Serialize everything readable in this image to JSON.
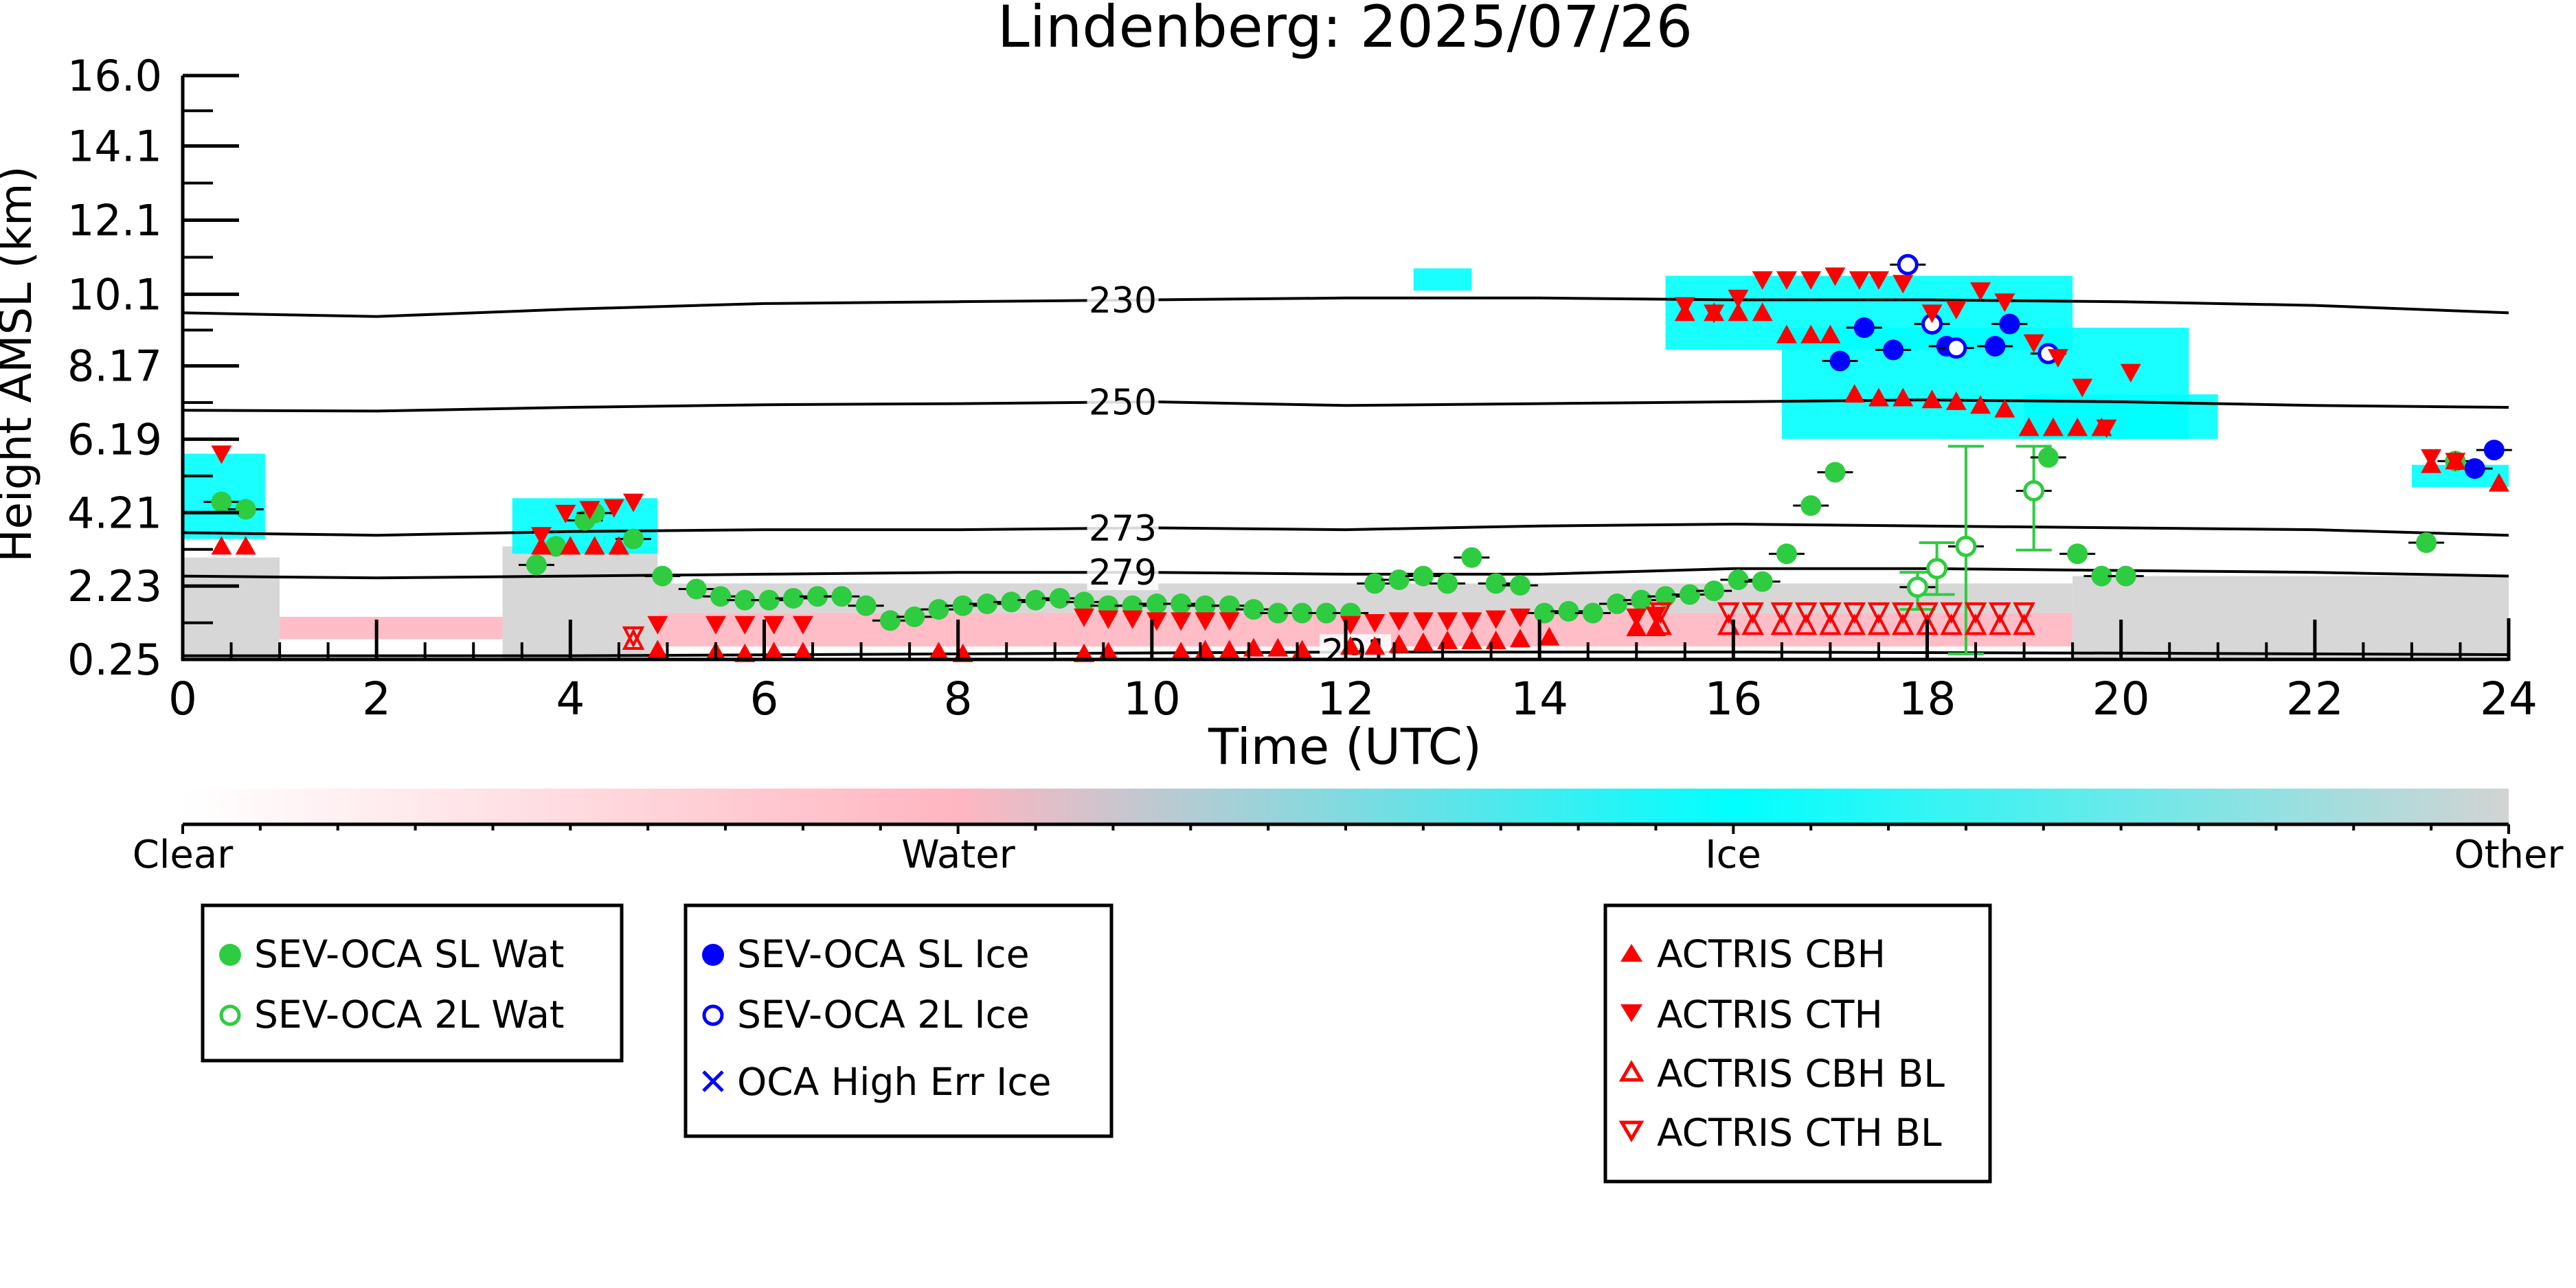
{
  "chart_data": {
    "type": "scatter",
    "title": "Lindenberg: 2025/07/26",
    "xlabel": "Time (UTC)",
    "ylabel": "Height AMSL (km)",
    "xlim": [
      0,
      24
    ],
    "ylim": [
      0.25,
      16.0
    ],
    "y_scale": "linear",
    "x_ticks": [
      "0",
      "2",
      "4",
      "6",
      "8",
      "10",
      "12",
      "14",
      "16",
      "18",
      "20",
      "22",
      "24"
    ],
    "y_ticks": [
      "0.25",
      "2.23",
      "4.21",
      "6.19",
      "8.17",
      "10.1",
      "12.1",
      "14.1",
      "16.0"
    ],
    "grid": false,
    "legend_placement": "below",
    "colorbar": {
      "labels": [
        "Clear",
        "Water",
        "Ice",
        "Other"
      ],
      "colors": {
        "clear": "#ffffff",
        "water": "#ffb6c1",
        "ice": "#00ffff",
        "other": "#d3d3d3"
      }
    },
    "legends": [
      {
        "entries": [
          {
            "label": "SEV-OCA SL Wat",
            "marker": "filled-circle",
            "color": "#2ecc40"
          },
          {
            "label": "SEV-OCA 2L Wat",
            "marker": "open-circle",
            "color": "#2ecc40"
          }
        ]
      },
      {
        "entries": [
          {
            "label": "SEV-OCA SL Ice",
            "marker": "filled-circle",
            "color": "#0000ff"
          },
          {
            "label": "SEV-OCA 2L Ice",
            "marker": "open-circle",
            "color": "#0000ff"
          },
          {
            "label": "OCA High Err Ice",
            "marker": "x",
            "color": "#0000ff"
          }
        ]
      },
      {
        "entries": [
          {
            "label": "ACTRIS CBH",
            "marker": "triangle-up",
            "color": "#ff0000"
          },
          {
            "label": "ACTRIS CTH",
            "marker": "triangle-down",
            "color": "#ff0000"
          },
          {
            "label": "ACTRIS CBH BL",
            "marker": "open-triangle-up",
            "color": "#ff0000"
          },
          {
            "label": "ACTRIS CTH BL",
            "marker": "open-triangle-down",
            "color": "#ff0000"
          }
        ]
      }
    ],
    "contours": [
      {
        "label": "230",
        "points": [
          [
            0,
            9.6
          ],
          [
            2,
            9.5
          ],
          [
            4,
            9.7
          ],
          [
            6,
            9.85
          ],
          [
            8,
            9.9
          ],
          [
            10,
            9.95
          ],
          [
            12,
            10.0
          ],
          [
            14,
            10.0
          ],
          [
            16,
            9.95
          ],
          [
            18,
            9.95
          ],
          [
            20,
            9.9
          ],
          [
            22,
            9.8
          ],
          [
            24,
            9.6
          ]
        ]
      },
      {
        "label": "250",
        "points": [
          [
            0,
            6.97
          ],
          [
            2,
            6.95
          ],
          [
            4,
            7.05
          ],
          [
            6,
            7.12
          ],
          [
            8,
            7.15
          ],
          [
            10,
            7.2
          ],
          [
            12,
            7.1
          ],
          [
            14,
            7.15
          ],
          [
            16,
            7.2
          ],
          [
            18,
            7.25
          ],
          [
            20,
            7.2
          ],
          [
            22,
            7.1
          ],
          [
            24,
            7.05
          ]
        ]
      },
      {
        "label": "273",
        "points": [
          [
            0,
            3.67
          ],
          [
            2,
            3.6
          ],
          [
            4,
            3.7
          ],
          [
            6,
            3.75
          ],
          [
            8,
            3.75
          ],
          [
            10,
            3.8
          ],
          [
            12,
            3.75
          ],
          [
            14,
            3.85
          ],
          [
            16,
            3.9
          ],
          [
            18,
            3.85
          ],
          [
            20,
            3.8
          ],
          [
            22,
            3.75
          ],
          [
            24,
            3.6
          ]
        ]
      },
      {
        "label": "279",
        "points": [
          [
            0,
            2.5
          ],
          [
            2,
            2.45
          ],
          [
            4,
            2.5
          ],
          [
            6,
            2.55
          ],
          [
            8,
            2.6
          ],
          [
            10,
            2.6
          ],
          [
            12,
            2.55
          ],
          [
            14,
            2.55
          ],
          [
            16,
            2.7
          ],
          [
            18,
            2.7
          ],
          [
            20,
            2.65
          ],
          [
            22,
            2.6
          ],
          [
            24,
            2.5
          ]
        ]
      },
      {
        "label": "291",
        "points": [
          [
            0,
            0.35
          ],
          [
            4,
            0.35
          ],
          [
            8,
            0.4
          ],
          [
            12,
            0.45
          ],
          [
            16,
            0.45
          ],
          [
            20,
            0.42
          ],
          [
            24,
            0.38
          ]
        ]
      }
    ],
    "cloud_regions": [
      {
        "class": "other",
        "x": [
          0,
          1.0
        ],
        "y": [
          0.25,
          3.0
        ]
      },
      {
        "class": "water",
        "x": [
          1.0,
          3.3
        ],
        "y": [
          0.8,
          1.4
        ]
      },
      {
        "class": "other",
        "x": [
          3.3,
          4.9
        ],
        "y": [
          0.25,
          3.3
        ]
      },
      {
        "class": "ice",
        "x": [
          0,
          0.85
        ],
        "y": [
          3.5,
          5.8
        ]
      },
      {
        "class": "ice",
        "x": [
          3.4,
          4.9
        ],
        "y": [
          3.1,
          4.6
        ]
      },
      {
        "class": "water",
        "x": [
          4.9,
          13.0
        ],
        "y": [
          0.6,
          1.5
        ]
      },
      {
        "class": "other",
        "x": [
          4.9,
          19.5
        ],
        "y": [
          1.5,
          2.3
        ]
      },
      {
        "class": "water",
        "x": [
          13.0,
          19.5
        ],
        "y": [
          0.6,
          1.5
        ]
      },
      {
        "class": "other",
        "x": [
          19.5,
          24
        ],
        "y": [
          0.25,
          2.5
        ]
      },
      {
        "class": "ice",
        "x": [
          15.3,
          19.5
        ],
        "y": [
          8.6,
          10.6
        ]
      },
      {
        "class": "ice",
        "x": [
          16.5,
          20.7
        ],
        "y": [
          6.2,
          9.2
        ]
      },
      {
        "class": "ice",
        "x": [
          19.0,
          21.0
        ],
        "y": [
          6.2,
          7.4
        ]
      },
      {
        "class": "ice",
        "x": [
          23.0,
          24
        ],
        "y": [
          4.9,
          5.5
        ]
      },
      {
        "class": "ice",
        "x": [
          12.7,
          13.3
        ],
        "y": [
          10.2,
          10.8
        ]
      }
    ],
    "series": [
      {
        "name": "SEV-OCA SL Wat",
        "marker": "filled-circle",
        "color": "#2ecc40",
        "x": [
          0.4,
          0.65,
          3.65,
          3.85,
          4.15,
          4.25,
          4.65,
          4.95,
          5.3,
          5.55,
          5.8,
          6.05,
          6.3,
          6.55,
          6.8,
          7.05,
          7.3,
          7.55,
          7.8,
          8.05,
          8.3,
          8.55,
          8.8,
          9.05,
          9.3,
          9.55,
          9.8,
          10.05,
          10.3,
          10.55,
          10.8,
          11.05,
          11.3,
          11.55,
          11.8,
          12.05,
          12.3,
          12.55,
          12.8,
          13.05,
          13.3,
          13.55,
          13.8,
          14.05,
          14.3,
          14.55,
          14.8,
          15.05,
          15.3,
          15.55,
          15.8,
          16.05,
          16.3,
          16.55,
          16.8,
          17.05,
          19.25,
          19.55,
          19.8,
          20.05,
          23.15,
          23.45
        ],
        "y": [
          4.5,
          4.3,
          2.8,
          3.3,
          4.0,
          4.2,
          3.5,
          2.5,
          2.15,
          1.95,
          1.85,
          1.85,
          1.9,
          1.95,
          1.95,
          1.7,
          1.3,
          1.4,
          1.6,
          1.7,
          1.75,
          1.8,
          1.85,
          1.9,
          1.8,
          1.7,
          1.7,
          1.75,
          1.75,
          1.7,
          1.7,
          1.6,
          1.5,
          1.5,
          1.5,
          1.5,
          2.3,
          2.4,
          2.5,
          2.3,
          3.0,
          2.3,
          2.25,
          1.5,
          1.55,
          1.5,
          1.75,
          1.85,
          1.95,
          2.0,
          2.1,
          2.4,
          2.35,
          3.1,
          4.4,
          5.3,
          5.7,
          3.1,
          2.5,
          2.5,
          3.4,
          5.6
        ]
      },
      {
        "name": "SEV-OCA 2L Wat",
        "marker": "open-circle",
        "color": "#2ecc40",
        "x": [
          17.9,
          18.1,
          18.4,
          19.1
        ],
        "y": [
          2.2,
          2.7,
          3.3,
          4.8
        ]
      },
      {
        "name": "SEV-OCA SL Ice",
        "marker": "filled-circle",
        "color": "#0000ff",
        "x": [
          17.1,
          17.35,
          17.65,
          18.2,
          18.7,
          18.85,
          23.65,
          23.85
        ],
        "y": [
          8.3,
          9.2,
          8.6,
          8.7,
          8.7,
          9.3,
          5.4,
          5.9
        ]
      },
      {
        "name": "SEV-OCA 2L Ice",
        "marker": "open-circle",
        "color": "#0000ff",
        "x": [
          17.8,
          18.05,
          18.3,
          19.25
        ],
        "y": [
          10.9,
          9.3,
          8.65,
          8.5
        ]
      },
      {
        "name": "ACTRIS CBH",
        "marker": "triangle-up",
        "color": "#ff0000",
        "x": [
          0.4,
          0.65,
          3.7,
          4.0,
          4.25,
          4.5,
          4.9,
          5.5,
          5.8,
          6.1,
          6.4,
          7.8,
          8.05,
          9.3,
          9.55,
          10.3,
          10.55,
          10.8,
          11.05,
          11.3,
          11.55,
          12.05,
          12.3,
          12.55,
          12.8,
          13.05,
          13.3,
          13.55,
          13.8,
          14.1,
          15.0,
          15.2,
          15.5,
          15.8,
          16.05,
          16.3,
          16.55,
          16.8,
          17.0,
          17.25,
          17.5,
          17.75,
          18.05,
          18.3,
          18.55,
          18.8,
          19.05,
          19.3,
          19.55,
          19.8,
          23.2,
          23.45,
          23.9
        ],
        "y": [
          3.3,
          3.3,
          3.3,
          3.3,
          3.3,
          3.3,
          0.5,
          0.45,
          0.4,
          0.45,
          0.45,
          0.45,
          0.4,
          0.4,
          0.45,
          0.45,
          0.5,
          0.5,
          0.55,
          0.55,
          0.5,
          0.6,
          0.6,
          0.65,
          0.7,
          0.75,
          0.75,
          0.75,
          0.8,
          0.85,
          1.1,
          1.1,
          9.6,
          9.6,
          9.6,
          9.6,
          9.0,
          9.0,
          9.0,
          7.4,
          7.3,
          7.3,
          7.25,
          7.2,
          7.1,
          7.0,
          6.5,
          6.5,
          6.5,
          6.5,
          5.5,
          5.6,
          5.0
        ]
      },
      {
        "name": "ACTRIS CTH",
        "marker": "triangle-down",
        "color": "#ff0000",
        "x": [
          0.4,
          3.7,
          3.95,
          4.2,
          4.45,
          4.65,
          4.9,
          5.5,
          5.8,
          6.1,
          6.4,
          9.3,
          9.55,
          9.8,
          10.05,
          10.3,
          10.55,
          10.8,
          12.05,
          12.3,
          12.55,
          12.8,
          13.05,
          13.3,
          13.55,
          13.8,
          15.0,
          15.2,
          15.5,
          15.8,
          16.05,
          16.3,
          16.55,
          16.8,
          17.05,
          17.3,
          17.5,
          17.75,
          18.05,
          18.3,
          18.55,
          18.8,
          19.1,
          19.35,
          19.6,
          19.85,
          20.1,
          23.2,
          23.45
        ],
        "y": [
          5.8,
          3.6,
          4.2,
          4.3,
          4.35,
          4.5,
          1.2,
          1.2,
          1.2,
          1.2,
          1.2,
          1.4,
          1.35,
          1.35,
          1.3,
          1.3,
          1.3,
          1.3,
          1.2,
          1.25,
          1.3,
          1.3,
          1.3,
          1.3,
          1.35,
          1.4,
          1.4,
          1.45,
          9.8,
          9.6,
          10.0,
          10.5,
          10.5,
          10.5,
          10.6,
          10.5,
          10.5,
          10.4,
          9.6,
          9.7,
          10.2,
          9.9,
          8.8,
          8.4,
          7.6,
          6.5,
          8.0,
          5.7,
          5.6
        ]
      },
      {
        "name": "ACTRIS CBH BL",
        "marker": "open-triangle-up",
        "color": "#ff0000",
        "x": [
          4.65,
          15.25,
          15.95,
          16.2,
          16.5,
          16.75,
          17.0,
          17.25,
          17.5,
          17.75,
          18.0,
          18.25,
          18.5,
          18.75,
          19.0
        ],
        "y": [
          0.75,
          1.15,
          1.15,
          1.15,
          1.15,
          1.15,
          1.15,
          1.15,
          1.15,
          1.15,
          1.15,
          1.15,
          1.15,
          1.15,
          1.15
        ]
      },
      {
        "name": "ACTRIS CTH BL",
        "marker": "open-triangle-down",
        "color": "#ff0000",
        "x": [
          4.65,
          15.25,
          15.95,
          16.2,
          16.5,
          16.75,
          17.0,
          17.25,
          17.5,
          17.75,
          18.0,
          18.25,
          18.5,
          18.75,
          19.0
        ],
        "y": [
          0.9,
          1.55,
          1.55,
          1.55,
          1.55,
          1.55,
          1.55,
          1.55,
          1.55,
          1.55,
          1.55,
          1.55,
          1.55,
          1.55,
          1.55
        ]
      }
    ],
    "error_bars": [
      {
        "x": 18.4,
        "low": 0.4,
        "high": 6.0
      },
      {
        "x": 19.1,
        "low": 3.2,
        "high": 6.0
      },
      {
        "x": 18.1,
        "low": 2.0,
        "high": 3.4
      },
      {
        "x": 17.9,
        "low": 1.6,
        "high": 2.6
      }
    ]
  }
}
